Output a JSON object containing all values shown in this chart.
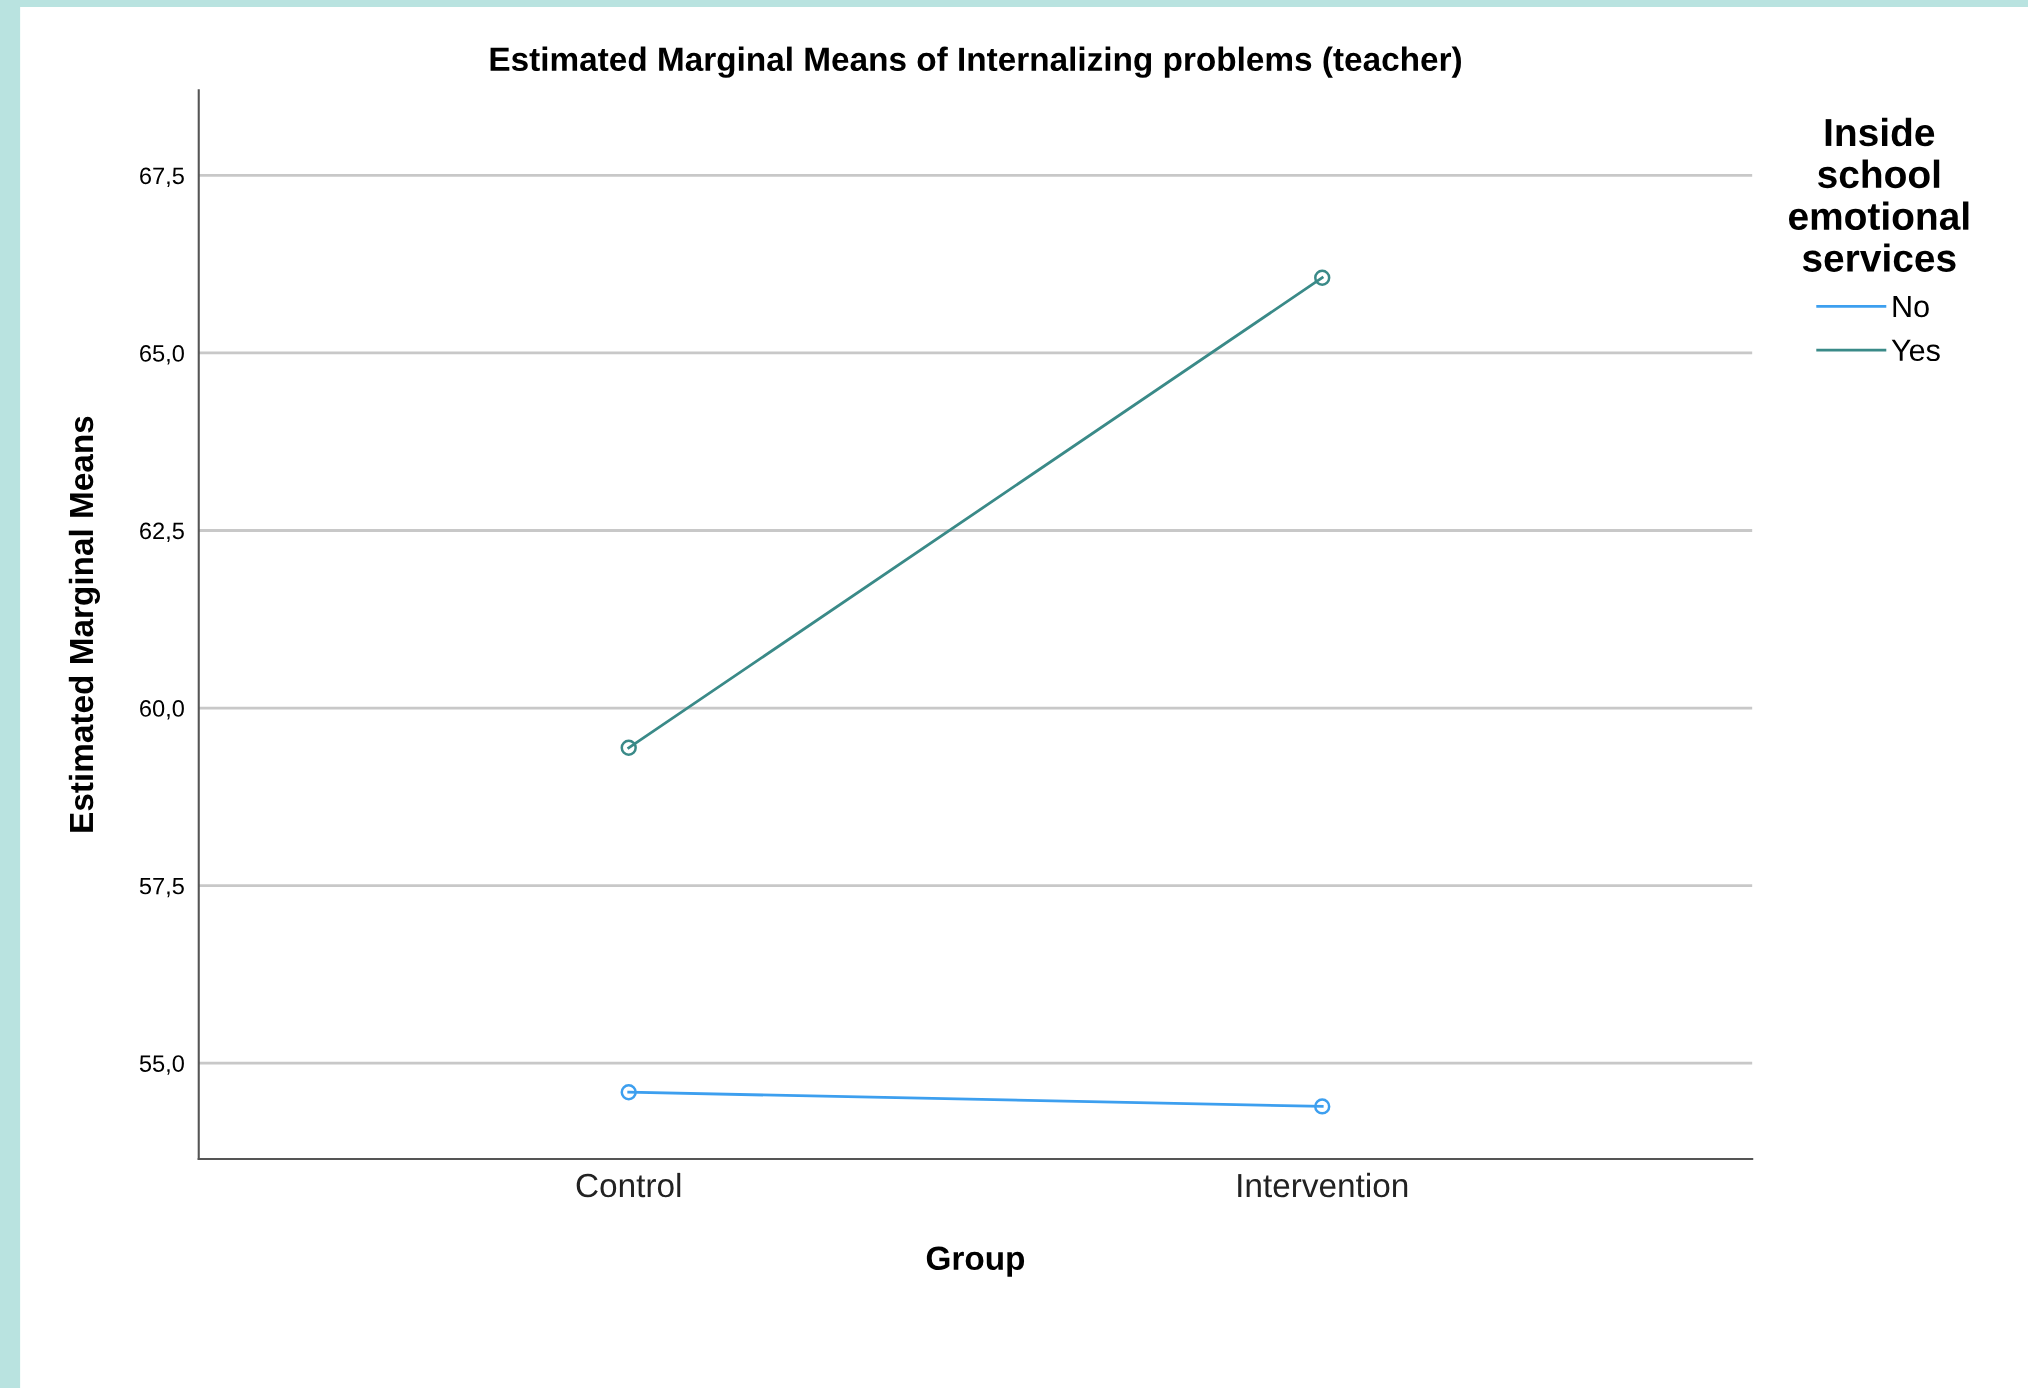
{
  "chart_data": {
    "type": "line",
    "title": "Estimated Marginal Means of Internalizing problems (teacher)",
    "xlabel": "Group",
    "ylabel": "Estimated Marginal Means",
    "legend_title": "Inside\nschool\nemotional\nservices",
    "categories": [
      "Control",
      "Intervention"
    ],
    "series": [
      {
        "name": "No",
        "color": "#3d9fef",
        "values": [
          54.59,
          54.39
        ]
      },
      {
        "name": "Yes",
        "color": "#3a8a88",
        "values": [
          59.44,
          66.06
        ]
      }
    ],
    "ylim": [
      53.65,
      68.7
    ],
    "yticks": [
      {
        "value": 55,
        "label": "55,0"
      },
      {
        "value": 57.5,
        "label": "57,5"
      },
      {
        "value": 60,
        "label": "60,0"
      },
      {
        "value": 62.5,
        "label": "62,5"
      },
      {
        "value": 65,
        "label": "65,0"
      },
      {
        "value": 67.5,
        "label": "67,5"
      }
    ],
    "grid": "y",
    "legend": "top right",
    "marker": "circle",
    "line_style": "solid"
  }
}
